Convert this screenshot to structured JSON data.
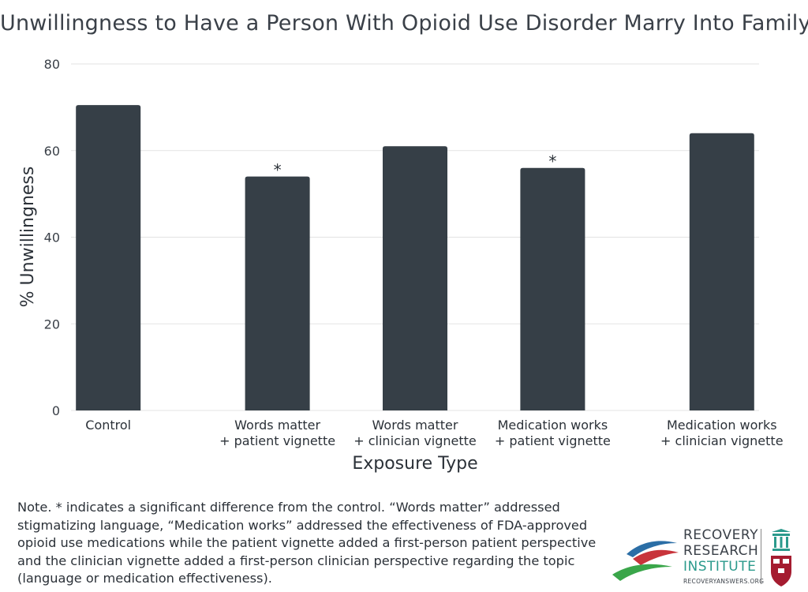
{
  "chart_data": {
    "type": "bar",
    "title": "Unwillingness to Have a Person With Opioid Use Disorder Marry Into Family",
    "xlabel": "Exposure Type",
    "ylabel": "% Unwillingness",
    "ylim": [
      0,
      80
    ],
    "yticks": [
      "0",
      "20",
      "40",
      "60",
      "80"
    ],
    "grid": true,
    "bar_color": "#363f47",
    "categories": [
      [
        "Control"
      ],
      [
        "Words matter",
        "+ patient vignette"
      ],
      [
        "Words matter",
        "+ clinician vignette"
      ],
      [
        "Medication works",
        "+ patient vignette"
      ],
      [
        "Medication works",
        "+ clinician vignette"
      ]
    ],
    "values": [
      70.5,
      54,
      61,
      56,
      64
    ],
    "annotations": [
      "",
      "*",
      "",
      "*",
      ""
    ]
  },
  "note": "Note. * indicates a significant difference from the control. “Words matter” addressed stigmatizing language, “Medication works” addressed the effectiveness of FDA-approved opioid use medications while the patient vignette added a first-person patient perspective and the clinician vignette added a first-person clinician perspective regarding the topic (language or medication effectiveness).",
  "logo": {
    "line1": "RECOVERY",
    "line2": "RESEARCH",
    "line3": "INSTITUTE",
    "url": "RECOVERYANSWERS.ORG",
    "icon": "harvard-shield-icon"
  }
}
